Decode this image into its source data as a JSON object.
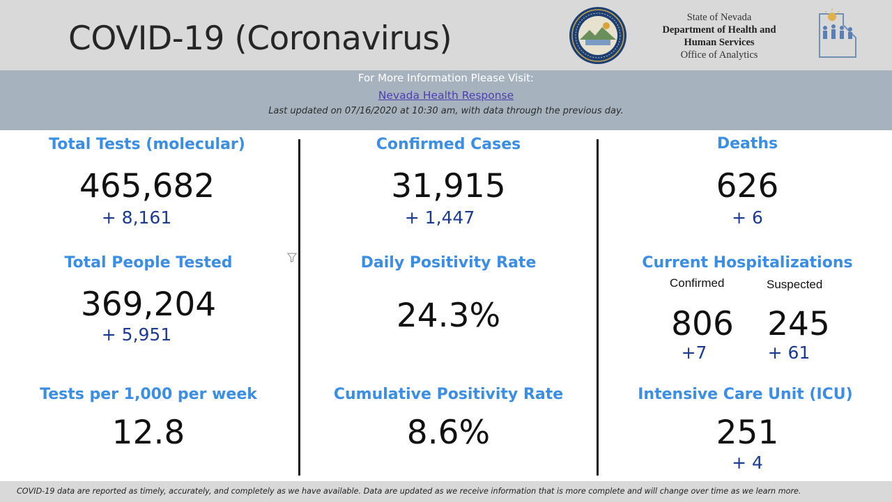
{
  "header": {
    "title": "COVID-19 (Coronavirus)",
    "agency": {
      "line1": "State of Nevada",
      "line2": "Department of Health and",
      "line3": "Human Services",
      "line4": "Office of Analytics"
    },
    "seal_icon": "nevada-state-seal-icon",
    "logo_icon": "dhhs-logo-icon"
  },
  "info": {
    "heading": "For More Information Please Visit:",
    "link_text": "Nevada Health Response",
    "updated": "Last updated on 07/16/2020 at 10:30 am, with data through the previous day."
  },
  "metrics": {
    "total_tests": {
      "label": "Total Tests (molecular)",
      "value": "465,682",
      "delta": "+ 8,161"
    },
    "people_tested": {
      "label": "Total People Tested",
      "value": "369,204",
      "delta": "+ 5,951"
    },
    "tests_per_1000": {
      "label": "Tests per 1,000 per week",
      "value": "12.8"
    },
    "confirmed_cases": {
      "label": "Confirmed Cases",
      "value": "31,915",
      "delta": "+ 1,447"
    },
    "daily_positivity": {
      "label": "Daily Positivity Rate",
      "value": "24.3%"
    },
    "cumulative_positivity": {
      "label": "Cumulative Positivity Rate",
      "value": "8.6%"
    },
    "deaths": {
      "label": "Deaths",
      "value": "626",
      "delta": "+ 6"
    },
    "hospitalizations": {
      "label": "Current Hospitalizations",
      "confirmed_label": "Confirmed",
      "suspected_label": "Suspected",
      "confirmed_value": "806",
      "confirmed_delta": "+7",
      "suspected_value": "245",
      "suspected_delta": "+ 61"
    },
    "icu": {
      "label": "Intensive Care Unit (ICU)",
      "value": "251",
      "delta": "+ 4"
    }
  },
  "footer": {
    "note": "COVID-19 data are reported as timely, accurately, and completely as we have available.  Data are updated as we receive information that is more complete and will change over time as we learn more."
  },
  "colors": {
    "label_blue": "#3a8ee6",
    "delta_blue": "#1b3a94",
    "header_gray": "#d9d9d9",
    "info_bar": "#a6b3bf"
  }
}
